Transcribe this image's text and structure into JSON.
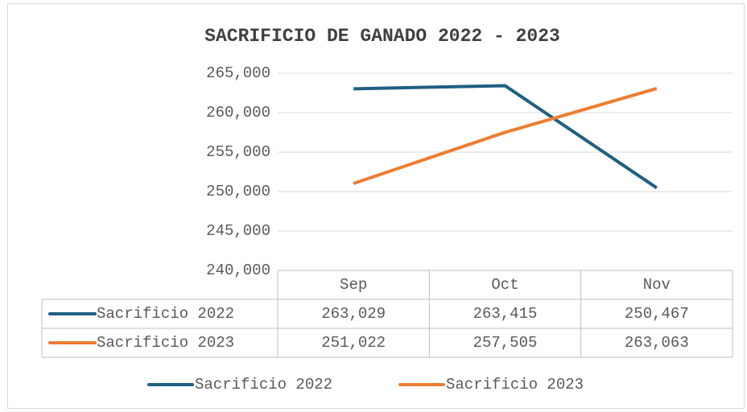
{
  "chart_data": {
    "type": "line",
    "title": "SACRIFICIO DE GANADO 2022 - 2023",
    "categories": [
      "Sep",
      "Oct",
      "Nov"
    ],
    "series": [
      {
        "name": "Sacrificio 2022",
        "color": "#1f5f82",
        "values": [
          263029,
          263415,
          250467
        ],
        "value_labels": [
          "263,029",
          "263,415",
          "250,467"
        ]
      },
      {
        "name": "Sacrificio 2023",
        "color": "#ed7d31",
        "values": [
          251022,
          257505,
          263063
        ],
        "value_labels": [
          "251,022",
          "257,505",
          "263,063"
        ]
      }
    ],
    "ylim": [
      240000,
      265000
    ],
    "yticks": [
      {
        "value": 240000,
        "label": "240,000"
      },
      {
        "value": 245000,
        "label": "245,000"
      },
      {
        "value": 250000,
        "label": "250,000"
      },
      {
        "value": 255000,
        "label": "255,000"
      },
      {
        "value": 260000,
        "label": "260,000"
      },
      {
        "value": 265000,
        "label": "265,000"
      }
    ],
    "grid": true,
    "legend": "bottom",
    "data_table": true
  }
}
